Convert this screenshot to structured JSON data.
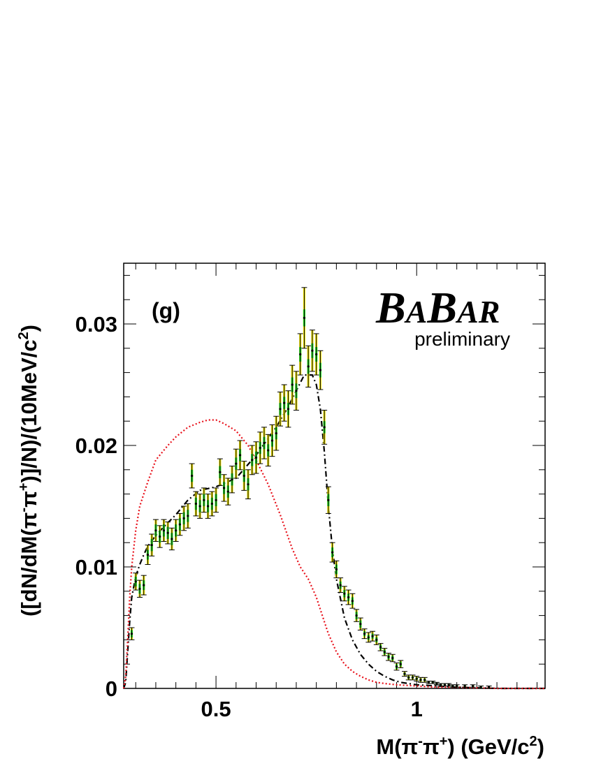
{
  "panel_label": "(g)",
  "brand": {
    "first": "B",
    "second": "A",
    "third": "B",
    "fourth": "AR",
    "subtitle": "preliminary"
  },
  "colors": {
    "data_box": "#f2e600",
    "stat_box": "#22dd22",
    "model_line": "#000000",
    "alt_model_line": "#e8101a"
  },
  "chart_data": {
    "type": "scatter",
    "xlabel_parts": {
      "base": "M(π",
      "sup1": "-",
      "mid": "π",
      "sup2": "+",
      "tail": ") (GeV/c",
      "sup3": "2",
      "end": ")"
    },
    "ylabel_parts": {
      "base": "([dN/dM(π",
      "sup1": "-",
      "mid": "π",
      "sup2": "+",
      "tail": ")]/N)/(10MeV/c",
      "sup3": "2",
      "end": ")"
    },
    "xlim": [
      0.27,
      1.32
    ],
    "ylim": [
      0,
      0.035
    ],
    "x_ticks": [
      {
        "v": 0.5,
        "label": "0.5"
      },
      {
        "v": 1.0,
        "label": "1"
      }
    ],
    "y_ticks": [
      {
        "v": 0,
        "label": "0"
      },
      {
        "v": 0.01,
        "label": "0.01"
      },
      {
        "v": 0.02,
        "label": "0.02"
      },
      {
        "v": 0.03,
        "label": "0.03"
      }
    ],
    "bin_width": 0.01,
    "series": [
      {
        "role": "data",
        "x": [
          0.29,
          0.3,
          0.31,
          0.32,
          0.33,
          0.34,
          0.35,
          0.36,
          0.37,
          0.38,
          0.39,
          0.4,
          0.41,
          0.42,
          0.43,
          0.44,
          0.45,
          0.46,
          0.47,
          0.48,
          0.49,
          0.5,
          0.51,
          0.52,
          0.53,
          0.54,
          0.55,
          0.56,
          0.57,
          0.58,
          0.59,
          0.6,
          0.61,
          0.62,
          0.63,
          0.64,
          0.65,
          0.66,
          0.67,
          0.68,
          0.69,
          0.7,
          0.71,
          0.72,
          0.73,
          0.74,
          0.75,
          0.76,
          0.77,
          0.78,
          0.79,
          0.8,
          0.81,
          0.82,
          0.83,
          0.84,
          0.85,
          0.86,
          0.87,
          0.88,
          0.89,
          0.9,
          0.91,
          0.92,
          0.93,
          0.94,
          0.95,
          0.96,
          0.97,
          0.98,
          0.99,
          1.0,
          1.01,
          1.02,
          1.03,
          1.04,
          1.05,
          1.06,
          1.07,
          1.08,
          1.09,
          1.1,
          1.12,
          1.14,
          1.16,
          1.18
        ],
        "y": [
          0.0045,
          0.0088,
          0.0082,
          0.0085,
          0.011,
          0.0118,
          0.013,
          0.0125,
          0.013,
          0.0128,
          0.0123,
          0.013,
          0.0135,
          0.014,
          0.0142,
          0.0175,
          0.0152,
          0.015,
          0.0155,
          0.015,
          0.0152,
          0.0155,
          0.0178,
          0.0165,
          0.0162,
          0.0172,
          0.0185,
          0.0192,
          0.0175,
          0.0168,
          0.0188,
          0.019,
          0.0198,
          0.0202,
          0.0196,
          0.0204,
          0.021,
          0.023,
          0.0235,
          0.023,
          0.025,
          0.0245,
          0.0275,
          0.0305,
          0.0265,
          0.0278,
          0.0275,
          0.0262,
          0.0215,
          0.0155,
          0.0112,
          0.0098,
          0.0085,
          0.0078,
          0.0075,
          0.0072,
          0.006,
          0.0053,
          0.0045,
          0.0042,
          0.0043,
          0.004,
          0.0034,
          0.003,
          0.0026,
          0.0025,
          0.0018,
          0.002,
          0.0012,
          0.0009,
          0.0009,
          0.0008,
          0.0007,
          0.0007,
          0.0005,
          0.0005,
          0.0004,
          0.0003,
          0.0003,
          0.0003,
          0.0002,
          0.0002,
          0.0002,
          0.0002,
          0.0001,
          0.0001
        ],
        "err_total": [
          0.0005,
          0.0007,
          0.0007,
          0.0008,
          0.0008,
          0.0009,
          0.0009,
          0.0009,
          0.0009,
          0.0009,
          0.0009,
          0.0009,
          0.0009,
          0.001,
          0.001,
          0.001,
          0.001,
          0.001,
          0.001,
          0.001,
          0.001,
          0.001,
          0.0011,
          0.0011,
          0.0011,
          0.0011,
          0.0012,
          0.0012,
          0.0012,
          0.0012,
          0.0012,
          0.0013,
          0.0013,
          0.0013,
          0.0013,
          0.0013,
          0.0014,
          0.0014,
          0.0015,
          0.0015,
          0.0016,
          0.0016,
          0.0017,
          0.0025,
          0.0017,
          0.0017,
          0.0017,
          0.0016,
          0.0014,
          0.0011,
          0.0008,
          0.0007,
          0.0006,
          0.0006,
          0.0006,
          0.0006,
          0.0005,
          0.0005,
          0.0004,
          0.0004,
          0.0004,
          0.0004,
          0.0003,
          0.0003,
          0.0003,
          0.0003,
          0.0003,
          0.0003,
          0.0002,
          0.0002,
          0.0002,
          0.0002,
          0.0002,
          0.0002,
          0.0001,
          0.0001,
          0.0001,
          0.0001,
          0.0001,
          0.0001,
          0.0001,
          0.0001,
          0.0001,
          0.0001,
          0.0001,
          0.0001
        ],
        "err_stat": [
          0.0003,
          0.0004,
          0.0004,
          0.0004,
          0.0004,
          0.0005,
          0.0005,
          0.0005,
          0.0005,
          0.0005,
          0.0005,
          0.0005,
          0.0005,
          0.0005,
          0.0005,
          0.0005,
          0.0005,
          0.0005,
          0.0005,
          0.0005,
          0.0005,
          0.0005,
          0.0005,
          0.0005,
          0.0005,
          0.0005,
          0.0005,
          0.0005,
          0.0005,
          0.0005,
          0.0005,
          0.0005,
          0.0005,
          0.0005,
          0.0005,
          0.0005,
          0.0005,
          0.0005,
          0.0005,
          0.0005,
          0.0006,
          0.0006,
          0.0006,
          0.0007,
          0.0006,
          0.0006,
          0.0006,
          0.0006,
          0.0005,
          0.0005,
          0.0004,
          0.0004,
          0.0003,
          0.0003,
          0.0003,
          0.0003,
          0.0003,
          0.0003,
          0.0002,
          0.0002,
          0.0002,
          0.0002,
          0.0002,
          0.0002,
          0.0002,
          0.0002,
          0.0002,
          0.0002,
          0.0001,
          0.0001,
          0.0001,
          0.0001,
          0.0001,
          0.0001,
          0.0001,
          0.0001,
          0.0001,
          0.0001,
          0.0001,
          0.0001,
          0.0001,
          0.0001,
          0.0001,
          0.0001,
          0.0001,
          0.0001
        ]
      },
      {
        "role": "model",
        "style": "dash-dot",
        "x": [
          0.27,
          0.275,
          0.28,
          0.285,
          0.29,
          0.3,
          0.31,
          0.32,
          0.33,
          0.35,
          0.37,
          0.4,
          0.43,
          0.46,
          0.5,
          0.55,
          0.6,
          0.65,
          0.68,
          0.7,
          0.72,
          0.74,
          0.75,
          0.76,
          0.77,
          0.78,
          0.79,
          0.8,
          0.82,
          0.84,
          0.86,
          0.88,
          0.9,
          0.92,
          0.94,
          0.96,
          1.0,
          1.05,
          1.1,
          1.2,
          1.32
        ],
        "y": [
          0,
          0.0005,
          0.003,
          0.0055,
          0.0075,
          0.0092,
          0.0102,
          0.011,
          0.0117,
          0.0126,
          0.0133,
          0.0143,
          0.0155,
          0.0163,
          0.0166,
          0.0173,
          0.0192,
          0.0215,
          0.0232,
          0.0245,
          0.0258,
          0.0258,
          0.025,
          0.023,
          0.0195,
          0.015,
          0.0115,
          0.009,
          0.0058,
          0.004,
          0.0028,
          0.002,
          0.0014,
          0.001,
          0.0007,
          0.0005,
          0.0003,
          0.0002,
          0.0001,
          0,
          0
        ]
      },
      {
        "role": "alt-model",
        "style": "dotted",
        "x": [
          0.27,
          0.275,
          0.28,
          0.285,
          0.29,
          0.3,
          0.31,
          0.33,
          0.35,
          0.38,
          0.4,
          0.43,
          0.46,
          0.48,
          0.5,
          0.52,
          0.55,
          0.58,
          0.6,
          0.63,
          0.66,
          0.69,
          0.71,
          0.73,
          0.75,
          0.76,
          0.77,
          0.78,
          0.8,
          0.82,
          0.84,
          0.86,
          0.88,
          0.9,
          0.92,
          0.95,
          1.0,
          1.05,
          1.1,
          1.2,
          1.32
        ],
        "y": [
          0,
          0.001,
          0.004,
          0.0075,
          0.01,
          0.013,
          0.015,
          0.017,
          0.0188,
          0.02,
          0.0207,
          0.0215,
          0.0219,
          0.0221,
          0.0221,
          0.0218,
          0.0212,
          0.02,
          0.0188,
          0.0168,
          0.0143,
          0.0115,
          0.01,
          0.009,
          0.0075,
          0.0065,
          0.0055,
          0.0045,
          0.003,
          0.002,
          0.0014,
          0.001,
          0.0007,
          0.0005,
          0.0004,
          0.0003,
          0.0002,
          0.0001,
          0.0001,
          0,
          0
        ]
      }
    ]
  }
}
